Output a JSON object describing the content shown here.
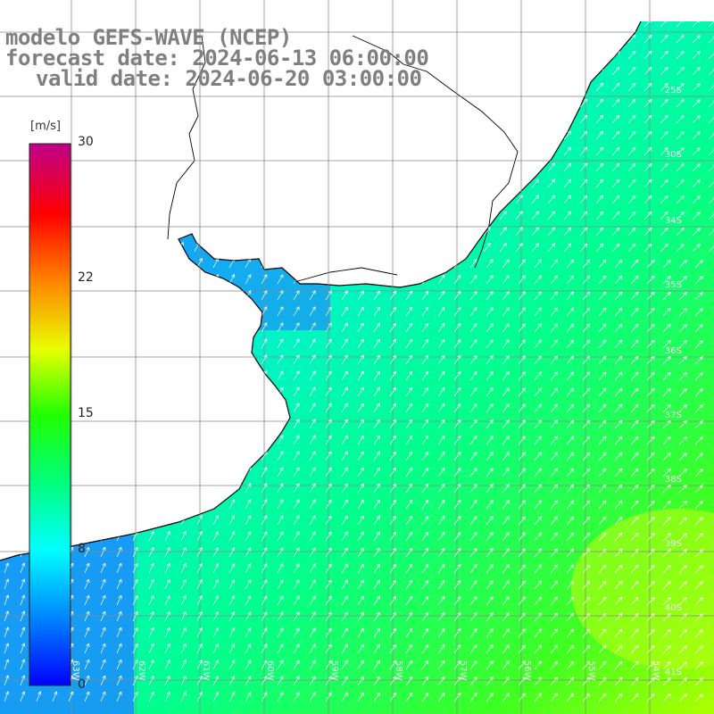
{
  "title": {
    "model": "modelo GEFS-WAVE (NCEP)",
    "forecast": "forecast date: 2024-06-13 06:00:00",
    "valid": "valid date: 2024-06-20 03:00:00"
  },
  "colorbar": {
    "unit": "[m/s]",
    "ticks": [
      "30",
      "22",
      "15",
      "8",
      "0"
    ],
    "colors": [
      "#0000ff",
      "#0080ff",
      "#00e5ff",
      "#00ff40",
      "#60ff00",
      "#e8ff00",
      "#ffb000",
      "#ff2000",
      "#e00030",
      "#c0008a"
    ]
  },
  "map": {
    "lat_labels": [
      "25S",
      "30S",
      "34S",
      "35S",
      "36S",
      "37S",
      "38S",
      "39S",
      "40S",
      "41S"
    ],
    "lon_labels": [
      "63W",
      "62W",
      "61W",
      "60W",
      "59W",
      "58W",
      "57W",
      "56W",
      "55W",
      "54W"
    ],
    "arrow_color": "#ffffff",
    "grid_color": "#888888",
    "coast_color": "#000000"
  }
}
